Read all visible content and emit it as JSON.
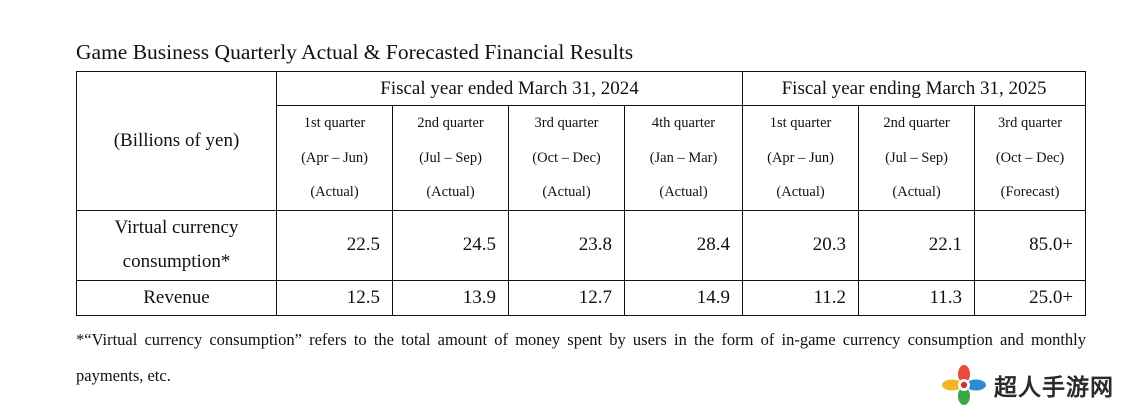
{
  "title": "Game Business Quarterly Actual & Forecasted Financial Results",
  "table": {
    "unit_label": "(Billions of yen)",
    "fiscal_years": [
      "Fiscal year ended March 31, 2024",
      "Fiscal year ending March 31, 2025"
    ],
    "quarters": [
      {
        "name": "1st quarter",
        "period": "(Apr – Jun)",
        "status": "(Actual)"
      },
      {
        "name": "2nd quarter",
        "period": "(Jul – Sep)",
        "status": "(Actual)"
      },
      {
        "name": "3rd quarter",
        "period": "(Oct – Dec)",
        "status": "(Actual)"
      },
      {
        "name": "4th quarter",
        "period": "(Jan – Mar)",
        "status": "(Actual)"
      },
      {
        "name": "1st quarter",
        "period": "(Apr – Jun)",
        "status": "(Actual)"
      },
      {
        "name": "2nd quarter",
        "period": "(Jul – Sep)",
        "status": "(Actual)"
      },
      {
        "name": "3rd quarter",
        "period": "(Oct – Dec)",
        "status": "(Forecast)"
      }
    ],
    "rows": [
      {
        "label_line1": "Virtual currency",
        "label_line2": "consumption*",
        "values": [
          "22.5",
          "24.5",
          "23.8",
          "28.4",
          "20.3",
          "22.1",
          "85.0+"
        ]
      },
      {
        "label": "Revenue",
        "values": [
          "12.5",
          "13.9",
          "12.7",
          "14.9",
          "11.2",
          "11.3",
          "25.0+"
        ]
      }
    ]
  },
  "footnote": "*“Virtual currency consumption” refers to the total amount of money spent by users in the form of in-game currency consumption and monthly payments, etc.",
  "watermark": {
    "text": "超人手游网",
    "icon": "flower-logo-icon"
  }
}
